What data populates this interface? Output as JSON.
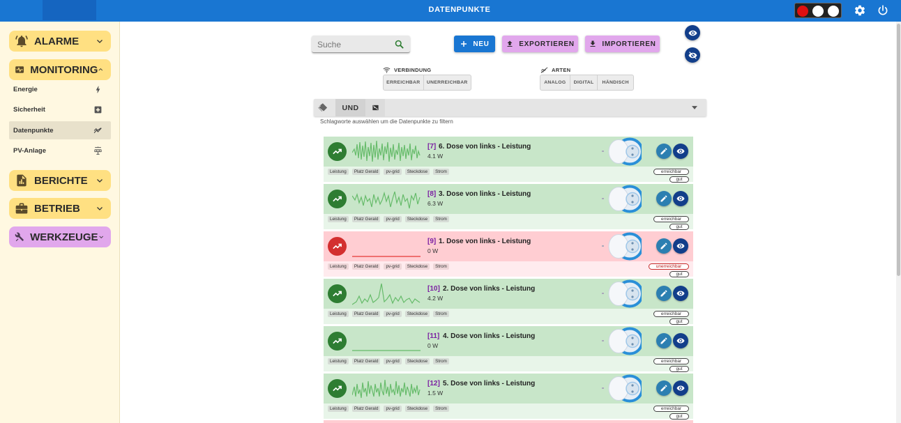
{
  "header": {
    "title": "DATENPUNKTE",
    "traffic_light": [
      "#e01010",
      "#ffffff",
      "#ffffff"
    ],
    "accent": "#1976d2"
  },
  "sidebar": {
    "groups": {
      "alarme": {
        "label": "ALARME",
        "icon": "bell-alarm-icon",
        "color": "#ffe082"
      },
      "monitoring": {
        "label": "MONITORING",
        "icon": "monitor-pulse-icon",
        "color": "#ffe082"
      },
      "berichte": {
        "label": "BERICHTE",
        "icon": "report-icon",
        "color": "#ffe082"
      },
      "betrieb": {
        "label": "BETRIEB",
        "icon": "briefcase-icon",
        "color": "#ffe082"
      },
      "werkzeuge": {
        "label": "WERKZEUGE",
        "icon": "tools-icon",
        "color": "#e1a7ec"
      }
    },
    "monitoring_items": [
      {
        "label": "Energie",
        "icon": "lightning-icon"
      },
      {
        "label": "Sicherheit",
        "icon": "medical-plus-icon"
      },
      {
        "label": "Datenpunkte",
        "icon": "chart-trend-icon",
        "active": true
      },
      {
        "label": "PV-Anlage",
        "icon": "solar-panel-icon"
      }
    ]
  },
  "toolbar": {
    "search_placeholder": "Suche",
    "new_label": "NEU",
    "export_label": "EXPORTIEREN",
    "import_label": "IMPORTIEREN"
  },
  "filters": {
    "connection": {
      "label": "VERBINDUNG",
      "options": [
        "ERREICHBAR",
        "UNERREICHBAR"
      ]
    },
    "types": {
      "label": "ARTEN",
      "options": [
        "ANALOG",
        "DIGITAL",
        "HÄNDISCH"
      ]
    }
  },
  "tagbar": {
    "mode": "UND",
    "hint": "Schlagworte auswählen um die Datenpunkte zu filtern"
  },
  "datapoints": [
    {
      "id": "[7]",
      "name": "6. Dose von links - Leistung",
      "value": "4.1 W",
      "status": "good",
      "connection": "erreichbar",
      "quality": "gut",
      "tags": [
        "Leistung",
        "Platz Gerald",
        "pv-grid",
        "Steckdose",
        "Strom"
      ]
    },
    {
      "id": "[8]",
      "name": "3. Dose von links - Leistung",
      "value": "6.3 W",
      "status": "good",
      "connection": "erreichbar",
      "quality": "gut",
      "tags": [
        "Leistung",
        "Platz Gerald",
        "pv-grid",
        "Steckdose",
        "Strom"
      ]
    },
    {
      "id": "[9]",
      "name": "1. Dose von links - Leistung",
      "value": "0 W",
      "status": "bad",
      "connection": "unerreichbar",
      "quality": "gut",
      "tags": [
        "Leistung",
        "Platz Gerald",
        "pv-grid",
        "Steckdose",
        "Strom"
      ]
    },
    {
      "id": "[10]",
      "name": "2. Dose von links - Leistung",
      "value": "4.2 W",
      "status": "good",
      "connection": "erreichbar",
      "quality": "gut",
      "tags": [
        "Leistung",
        "Platz Gerald",
        "pv-grid",
        "Steckdose",
        "Strom"
      ]
    },
    {
      "id": "[11]",
      "name": "4. Dose von links - Leistung",
      "value": "0 W",
      "status": "good",
      "connection": "erreichbar",
      "quality": "gut",
      "tags": [
        "Leistung",
        "Platz Gerald",
        "pv-grid",
        "Steckdose",
        "Strom"
      ]
    },
    {
      "id": "[12]",
      "name": "5. Dose von links - Leistung",
      "value": "1.5 W",
      "status": "good",
      "connection": "erreichbar",
      "quality": "gut",
      "tags": [
        "Leistung",
        "Platz Gerald",
        "pv-grid",
        "Steckdose",
        "Strom"
      ]
    }
  ]
}
